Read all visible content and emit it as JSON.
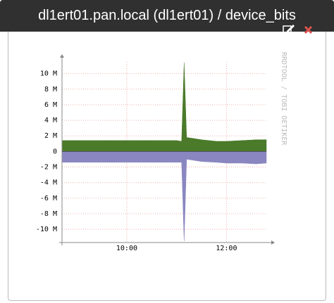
{
  "header": {
    "title": "dl1ert01.pan.local (dl1ert01) / device_bits"
  },
  "chart_data": {
    "type": "area",
    "watermark": "RRDTOOL / TOBI OETIKER",
    "x": [
      8.7,
      9.0,
      9.5,
      10.0,
      10.5,
      11.0,
      11.1,
      11.15,
      11.2,
      11.3,
      11.5,
      11.8,
      12.0,
      12.3,
      12.6,
      12.8
    ],
    "series": [
      {
        "color": "#4a7a2a",
        "values": [
          1.4,
          1.4,
          1.4,
          1.4,
          1.4,
          1.4,
          1.3,
          11.4,
          1.8,
          1.7,
          1.5,
          1.3,
          1.3,
          1.4,
          1.5,
          1.5
        ]
      },
      {
        "color": "#8a86c0",
        "values": [
          -1.4,
          -1.4,
          -1.4,
          -1.4,
          -1.4,
          -1.4,
          -1.4,
          -11.5,
          -1.0,
          -1.1,
          -1.3,
          -1.4,
          -1.5,
          -1.5,
          -1.6,
          -1.5
        ]
      }
    ],
    "xlim": [
      8.7,
      12.8
    ],
    "xticks": [
      {
        "value": 10,
        "label": "10:00"
      },
      {
        "value": 12,
        "label": "12:00"
      }
    ],
    "ylim": [
      -11.7,
      11.5
    ],
    "yticks": [
      {
        "value": 10,
        "label": "10 M"
      },
      {
        "value": 8,
        "label": "8 M"
      },
      {
        "value": 6,
        "label": "6 M"
      },
      {
        "value": 4,
        "label": "4 M"
      },
      {
        "value": 2,
        "label": "2 M"
      },
      0,
      {
        "value": -2,
        "label": "-2 M"
      },
      {
        "value": -4,
        "label": "-4 M"
      },
      {
        "value": -6,
        "label": "-6 M"
      },
      {
        "value": -8,
        "label": "-8 M"
      },
      {
        "value": -10,
        "label": "-10 M"
      }
    ],
    "grid": true
  }
}
